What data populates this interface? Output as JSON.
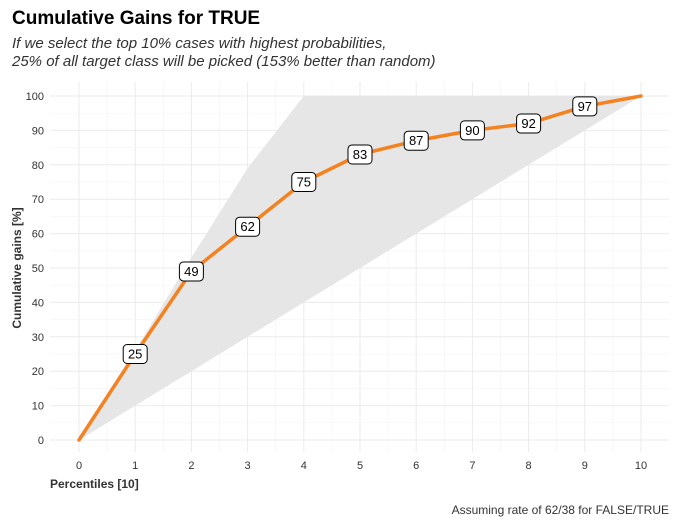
{
  "title": "Cumulative Gains for TRUE",
  "subtitle": [
    "If we select the top 10% cases with highest probabilities,",
    "25% of all target class will be picked (153% better than random)"
  ],
  "caption": "Assuming rate of 62/38 for FALSE/TRUE",
  "colors": {
    "line": "#f58220",
    "band": "#e6e6e6",
    "grid": "#ebebeb",
    "label_border": "#000000"
  },
  "chart_data": {
    "type": "line",
    "title": "Cumulative Gains for TRUE",
    "xlabel": "Percentiles [10]",
    "ylabel": "Cumulative gains [%]",
    "xlim": [
      0,
      10
    ],
    "ylim": [
      0,
      100
    ],
    "x_ticks": [
      "0",
      "1",
      "2",
      "3",
      "4",
      "5",
      "6",
      "7",
      "8",
      "9",
      "10"
    ],
    "y_ticks": [
      "0",
      "10",
      "20",
      "30",
      "40",
      "50",
      "60",
      "70",
      "80",
      "90",
      "100"
    ],
    "grid": true,
    "series": [
      {
        "x": [
          0,
          1,
          2,
          3,
          4,
          5,
          6,
          7,
          8,
          9,
          10
        ],
        "values": [
          0,
          25,
          49,
          62,
          75,
          83,
          87,
          90,
          92,
          97,
          100
        ],
        "labels": [
          "25",
          "49",
          "62",
          "75",
          "83",
          "87",
          "90",
          "92",
          "97"
        ]
      }
    ],
    "reference_band": {
      "upper": [
        0,
        26,
        53,
        79,
        100,
        100,
        100,
        100,
        100,
        100,
        100
      ],
      "lower": [
        0,
        10,
        20,
        30,
        40,
        50,
        60,
        70,
        80,
        90,
        100
      ]
    }
  }
}
